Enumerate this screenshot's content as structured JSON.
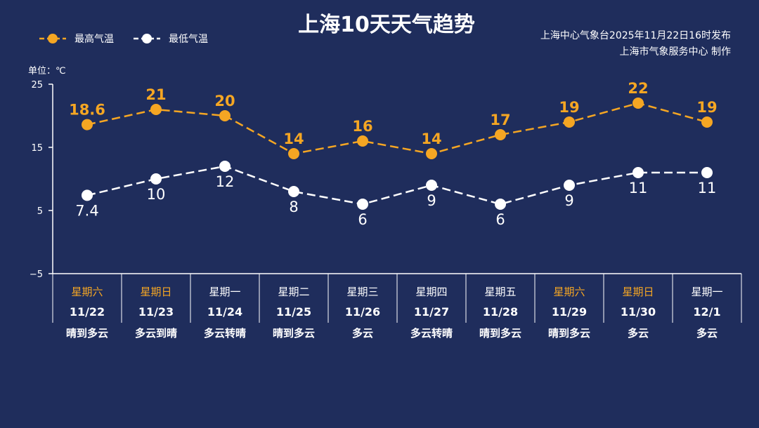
{
  "title": "上海10天天气趋势",
  "issuer_line1": "上海中心气象台2025年11月22日16时发布",
  "issuer_line2": "上海市气象服务中心  制作",
  "colors": {
    "background": "#1f2d5c",
    "high": "#f5a623",
    "low": "#ffffff",
    "weekend": "#f5a623",
    "weekday": "#ffffff"
  },
  "chart_data": {
    "type": "line",
    "title": "上海10天天气趋势",
    "unit_label": "单位：℃",
    "ylim": [
      -5,
      25
    ],
    "yticks": [
      25,
      15,
      5,
      -5
    ],
    "ytick_labels": [
      "25",
      "15",
      "5",
      "−5"
    ],
    "legend_position": "top-left",
    "categories": [
      "11/22",
      "11/23",
      "11/24",
      "11/25",
      "11/26",
      "11/27",
      "11/28",
      "11/29",
      "11/30",
      "12/1"
    ],
    "weekdays": [
      "星期六",
      "星期日",
      "星期一",
      "星期二",
      "星期三",
      "星期四",
      "星期五",
      "星期六",
      "星期日",
      "星期一"
    ],
    "weekend_flags": [
      true,
      true,
      false,
      false,
      false,
      false,
      false,
      true,
      true,
      false
    ],
    "conditions": [
      "晴到多云",
      "多云到晴",
      "多云转晴",
      "晴到多云",
      "多云",
      "多云转晴",
      "晴到多云",
      "晴到多云",
      "多云",
      "多云"
    ],
    "series": [
      {
        "name": "最高气温",
        "key": "high",
        "values": [
          18.6,
          21,
          20,
          14,
          16,
          14,
          17,
          19,
          22,
          19
        ],
        "labels": [
          "18.6",
          "21",
          "20",
          "14",
          "16",
          "14",
          "17",
          "19",
          "22",
          "19"
        ]
      },
      {
        "name": "最低气温",
        "key": "low",
        "values": [
          7.4,
          10,
          12,
          8,
          6,
          9,
          6,
          9,
          11,
          11
        ],
        "labels": [
          "7.4",
          "10",
          "12",
          "8",
          "6",
          "9",
          "6",
          "9",
          "11",
          "11"
        ]
      }
    ]
  }
}
